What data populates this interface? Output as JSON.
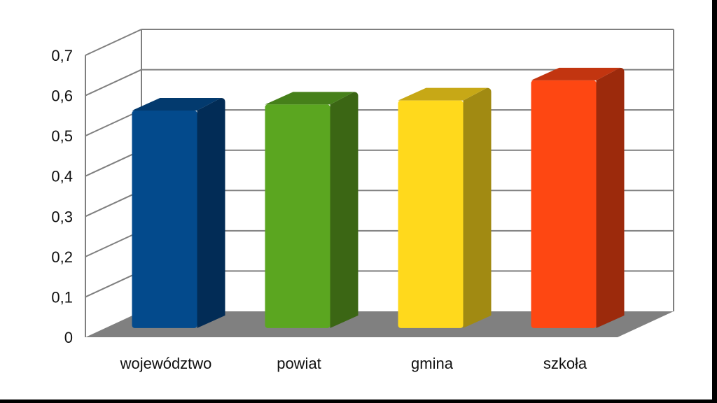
{
  "chart_data": {
    "type": "bar",
    "categories": [
      "województwo",
      "powiat",
      "gmina",
      "szkoła"
    ],
    "values": [
      0.54,
      0.555,
      0.565,
      0.615
    ],
    "ylim": [
      0,
      0.7
    ],
    "yticks": [
      "0",
      "0,1",
      "0,2",
      "0,3",
      "0,4",
      "0,5",
      "0,6",
      "0,7"
    ],
    "grid": true,
    "legend": "none",
    "colors": {
      "front": [
        "#034a8c",
        "#5ba620",
        "#ffd91c",
        "#fe4712"
      ],
      "side": [
        "#022c56",
        "#3b6614",
        "#a18a12",
        "#9c2a0c"
      ],
      "top": [
        "#033a6e",
        "#46801a",
        "#c7a816",
        "#c23510"
      ],
      "floor": "#808080",
      "grid": "#7f7f7f",
      "frame_background": "#000000"
    }
  }
}
